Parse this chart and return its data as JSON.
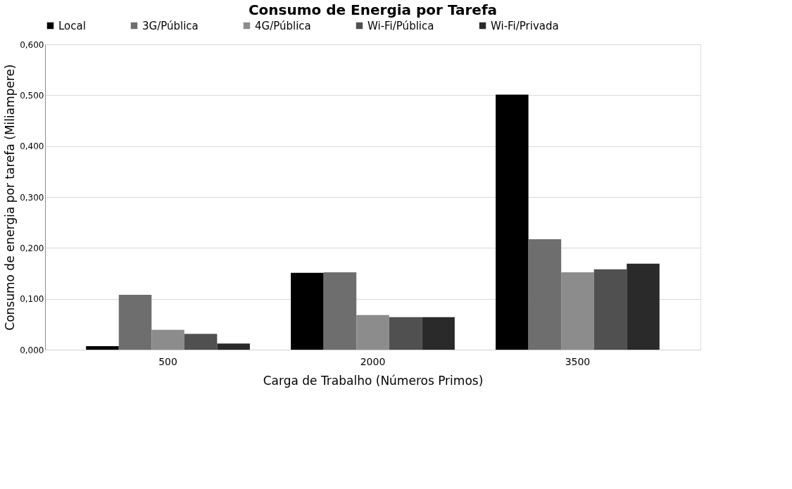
{
  "chart_data": {
    "type": "bar",
    "title": "Consumo de Energia por Tarefa",
    "xlabel": "Carga de Trabalho (Números Primos)",
    "ylabel": "Consumo de energia por tarefa (Miliampere)",
    "categories": [
      "500",
      "2000",
      "3500"
    ],
    "series": [
      {
        "name": "Local",
        "color": "#000000",
        "values": [
          0.007,
          0.151,
          0.501
        ]
      },
      {
        "name": "3G/Pública",
        "color": "#6e6e6e",
        "values": [
          0.108,
          0.152,
          0.217
        ]
      },
      {
        "name": "4G/Pública",
        "color": "#8c8c8c",
        "values": [
          0.039,
          0.068,
          0.152
        ]
      },
      {
        "name": "Wi-Fi/Pública",
        "color": "#505050",
        "values": [
          0.031,
          0.064,
          0.158
        ]
      },
      {
        "name": "Wi-Fi/Privada",
        "color": "#2a2a2a",
        "values": [
          0.012,
          0.064,
          0.169
        ]
      }
    ],
    "ylim": [
      0,
      0.6
    ],
    "yticks": [
      {
        "value": 0,
        "label": "0,000"
      },
      {
        "value": 0.1,
        "label": "0,100"
      },
      {
        "value": 0.2,
        "label": "0,200"
      },
      {
        "value": 0.3,
        "label": "0,300"
      },
      {
        "value": 0.4,
        "label": "0,400"
      },
      {
        "value": 0.5,
        "label": "0,500"
      },
      {
        "value": 0.6,
        "label": "0,600"
      }
    ],
    "grid": "y",
    "legend": "top"
  }
}
